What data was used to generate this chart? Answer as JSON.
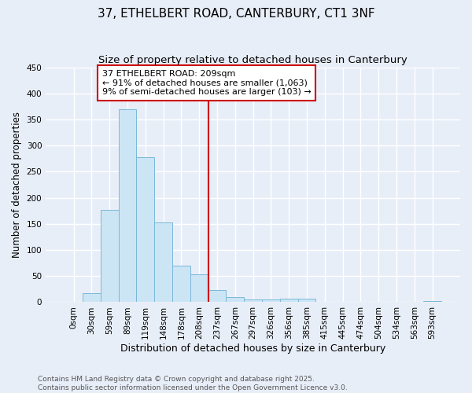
{
  "title": "37, ETHELBERT ROAD, CANTERBURY, CT1 3NF",
  "subtitle": "Size of property relative to detached houses in Canterbury",
  "xlabel": "Distribution of detached houses by size in Canterbury",
  "ylabel": "Number of detached properties",
  "bar_labels": [
    "0sqm",
    "30sqm",
    "59sqm",
    "89sqm",
    "119sqm",
    "148sqm",
    "178sqm",
    "208sqm",
    "237sqm",
    "267sqm",
    "297sqm",
    "326sqm",
    "356sqm",
    "385sqm",
    "415sqm",
    "445sqm",
    "474sqm",
    "504sqm",
    "534sqm",
    "563sqm",
    "593sqm"
  ],
  "bar_values": [
    0,
    17,
    177,
    370,
    277,
    153,
    70,
    54,
    23,
    10,
    5,
    5,
    6,
    6,
    0,
    0,
    0,
    0,
    0,
    0,
    2
  ],
  "bar_color": "#cce5f5",
  "bar_edge_color": "#7ab8d8",
  "vline_color": "#cc0000",
  "vline_idx": 7.5,
  "annotation_text": "37 ETHELBERT ROAD: 209sqm\n← 91% of detached houses are smaller (1,063)\n9% of semi-detached houses are larger (103) →",
  "annotation_box_facecolor": "#ffffff",
  "annotation_box_edgecolor": "#cc0000",
  "ylim": [
    0,
    450
  ],
  "yticks": [
    0,
    50,
    100,
    150,
    200,
    250,
    300,
    350,
    400,
    450
  ],
  "bg_color": "#e8eef8",
  "grid_color": "#ffffff",
  "footer_line1": "Contains HM Land Registry data © Crown copyright and database right 2025.",
  "footer_line2": "Contains public sector information licensed under the Open Government Licence v3.0.",
  "title_fontsize": 11,
  "subtitle_fontsize": 9.5,
  "xlabel_fontsize": 9,
  "ylabel_fontsize": 8.5,
  "tick_fontsize": 7.5,
  "annotation_fontsize": 8,
  "footer_fontsize": 6.5
}
